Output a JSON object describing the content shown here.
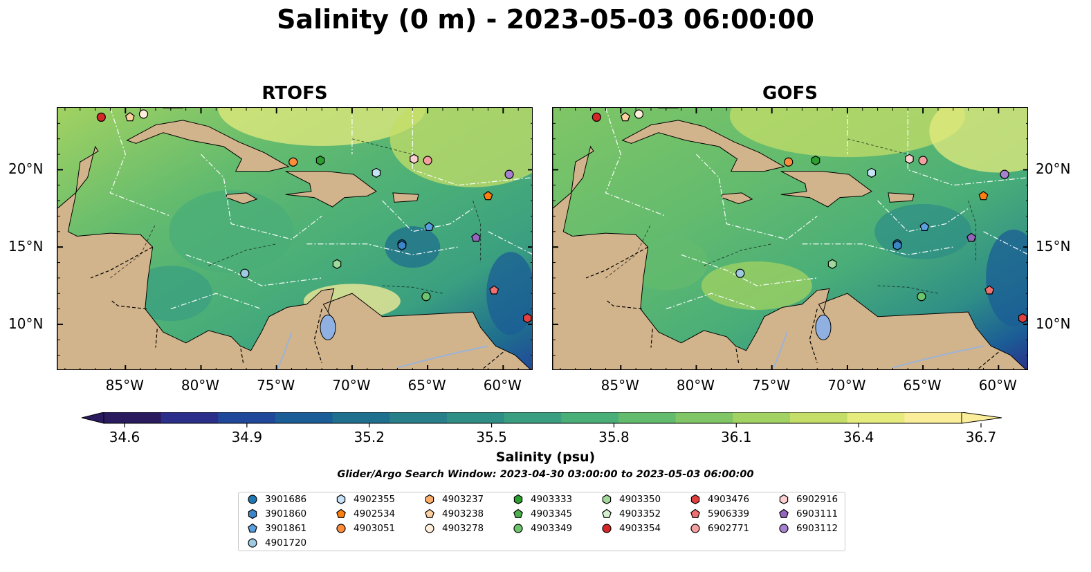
{
  "title": "Salinity (0 m) - 2023-05-03 06:00:00",
  "panels": [
    {
      "title": "RTOFS"
    },
    {
      "title": "GOFS"
    }
  ],
  "x_ticks": [
    "85°W",
    "80°W",
    "75°W",
    "70°W",
    "65°W",
    "60°W"
  ],
  "y_ticks": [
    "20°N",
    "15°N",
    "10°N"
  ],
  "colorbar": {
    "ticks": [
      "34.6",
      "34.9",
      "35.2",
      "35.5",
      "35.8",
      "36.1",
      "36.4",
      "36.7"
    ],
    "label": "Salinity (psu)",
    "colors": [
      "#2a1a5e",
      "#2c2f8a",
      "#20489a",
      "#1b5d96",
      "#1f6f8e",
      "#277f8a",
      "#2f8f86",
      "#3a9f80",
      "#4aae78",
      "#63bb6e",
      "#80c666",
      "#a2d262",
      "#c4de68",
      "#e6eb7e",
      "#fbee9a"
    ]
  },
  "search_window": "Glider/Argo Search Window: 2023-04-30 03:00:00 to 2023-05-03 06:00:00",
  "legend": [
    {
      "id": "3901686",
      "marker": "circle",
      "color": "#1f77b4"
    },
    {
      "id": "3901860",
      "marker": "hexagon",
      "color": "#3a86c8"
    },
    {
      "id": "3901861",
      "marker": "pentagon",
      "color": "#5aa0e0"
    },
    {
      "id": "4901720",
      "marker": "circle",
      "color": "#9ecae1"
    },
    {
      "id": "4902355",
      "marker": "hexagon",
      "color": "#c6e2f7"
    },
    {
      "id": "4902534",
      "marker": "pentagon",
      "color": "#ff7f0e"
    },
    {
      "id": "4903051",
      "marker": "circle",
      "color": "#fd8d3c"
    },
    {
      "id": "4903237",
      "marker": "hexagon",
      "color": "#fdae6b"
    },
    {
      "id": "4903238",
      "marker": "pentagon",
      "color": "#fdd0a2"
    },
    {
      "id": "4903278",
      "marker": "circle",
      "color": "#feeedb"
    },
    {
      "id": "4903333",
      "marker": "hexagon",
      "color": "#2ca02c"
    },
    {
      "id": "4903345",
      "marker": "pentagon",
      "color": "#4cb04c"
    },
    {
      "id": "4903349",
      "marker": "circle",
      "color": "#6cc46c"
    },
    {
      "id": "4903350",
      "marker": "hexagon",
      "color": "#a1d99b"
    },
    {
      "id": "4903352",
      "marker": "pentagon",
      "color": "#d4f0cc"
    },
    {
      "id": "4903354",
      "marker": "circle",
      "color": "#d62728"
    },
    {
      "id": "4903476",
      "marker": "hexagon",
      "color": "#e04040"
    },
    {
      "id": "5906339",
      "marker": "pentagon",
      "color": "#f07070"
    },
    {
      "id": "6902771",
      "marker": "circle",
      "color": "#f4a0a0"
    },
    {
      "id": "6902916",
      "marker": "hexagon",
      "color": "#fcd0d0"
    },
    {
      "id": "6903111",
      "marker": "pentagon",
      "color": "#9467bd"
    },
    {
      "id": "6903112",
      "marker": "circle",
      "color": "#a880d0"
    }
  ]
}
